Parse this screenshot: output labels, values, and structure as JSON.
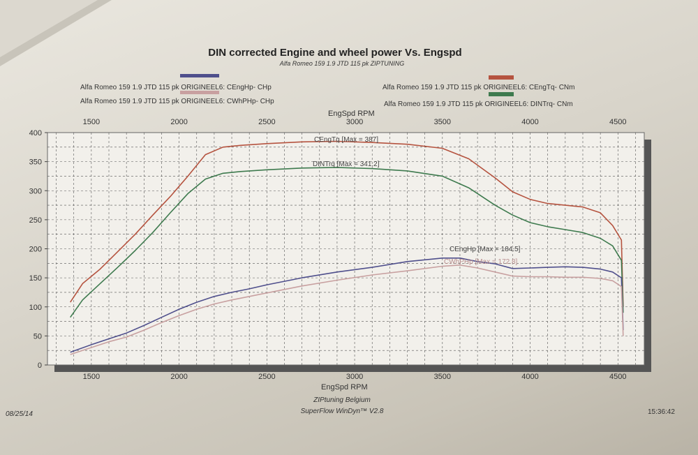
{
  "colors": {
    "ceng_tq": "#b5533f",
    "din_tq": "#3e7a4e",
    "ceng_hp": "#4f4f8c",
    "cwh_php": "#c8a0a0"
  },
  "chart": {
    "title": "DIN corrected Engine and wheel power Vs. Engspd",
    "subtitle": "Alfa Romeo 159 1.9 JTD 115 pk ZIPTUNING",
    "top_axis_label": "EngSpd RPM",
    "bottom_axis_label": "EngSpd RPM"
  },
  "legend": [
    {
      "label": "Alfa Romeo 159 1.9 JTD 115 pk ORIGINEEL6: CEngHp-  CHp",
      "color": "#4f4f8c"
    },
    {
      "label": "Alfa Romeo 159 1.9 JTD 115 pk ORIGINEEL6: CWhPHp-  CHp",
      "color": "#c8a0a0"
    },
    {
      "label": "Alfa Romeo 159 1.9 JTD 115 pk ORIGINEEL6: CEngTq-  CNm",
      "color": "#b5533f"
    },
    {
      "label": "Alfa Romeo 159 1.9 JTD 115 pk ORIGINEEL6: DINTrq-  CNm",
      "color": "#3e7a4e"
    }
  ],
  "annotations": {
    "ceng_tq_max": "CEngTq [Max = 387]",
    "din_trq_max": "DINTrq [Max = 341.2]",
    "ceng_hp_max": "CEngHp [Max = 184.5]",
    "cwh_php_max": "CWhPHp [Max = 172.8]"
  },
  "footer": {
    "date": "08/25/14",
    "company": "ZIPtuning Belgium",
    "software": "SuperFlow WinDyn™ V2.8",
    "time": "15:36:42"
  },
  "chart_data": {
    "type": "line",
    "title": "DIN corrected Engine and wheel power Vs. Engspd",
    "subtitle": "Alfa Romeo 159 1.9 JTD 115 pk ZIPTUNING",
    "xlabel": "EngSpd RPM",
    "ylabel": "",
    "xlim": [
      1250,
      4650
    ],
    "ylim": [
      0,
      400
    ],
    "x_ticks": [
      1500,
      2000,
      2500,
      3000,
      3500,
      4000,
      4500
    ],
    "y_ticks": [
      0,
      50,
      100,
      150,
      200,
      250,
      300,
      350,
      400
    ],
    "grid": true,
    "legend_position": "top",
    "series": [
      {
        "name": "Alfa Romeo 159 1.9 JTD 115 pk ORIGINEEL6: CEngTq-  CNm",
        "color": "#b5533f",
        "x": [
          1380,
          1450,
          1550,
          1650,
          1750,
          1850,
          1950,
          2050,
          2150,
          2250,
          2350,
          2500,
          2700,
          2900,
          3100,
          3300,
          3500,
          3650,
          3800,
          3900,
          4000,
          4100,
          4200,
          4300,
          4400,
          4470,
          4520,
          4530
        ],
        "y": [
          108,
          140,
          165,
          195,
          225,
          258,
          290,
          325,
          362,
          375,
          378,
          381,
          384,
          385,
          383,
          380,
          373,
          355,
          322,
          298,
          285,
          278,
          275,
          272,
          262,
          240,
          215,
          100
        ]
      },
      {
        "name": "Alfa Romeo 159 1.9 JTD 115 pk ORIGINEEL6: DINTrq-  CNm",
        "color": "#3e7a4e",
        "x": [
          1380,
          1450,
          1550,
          1650,
          1750,
          1850,
          1950,
          2050,
          2150,
          2250,
          2350,
          2500,
          2700,
          2900,
          3100,
          3300,
          3500,
          3650,
          3800,
          3900,
          4000,
          4100,
          4200,
          4300,
          4400,
          4470,
          4520,
          4530
        ],
        "y": [
          82,
          112,
          140,
          168,
          197,
          228,
          262,
          295,
          320,
          330,
          333,
          336,
          339,
          340,
          338,
          334,
          325,
          305,
          275,
          258,
          245,
          238,
          233,
          228,
          218,
          205,
          180,
          90
        ]
      },
      {
        "name": "Alfa Romeo 159 1.9 JTD 115 pk ORIGINEEL6: CEngHp-  CHp",
        "color": "#4f4f8c",
        "x": [
          1380,
          1500,
          1600,
          1700,
          1800,
          1900,
          2000,
          2100,
          2200,
          2300,
          2400,
          2500,
          2700,
          2900,
          3100,
          3300,
          3500,
          3600,
          3700,
          3800,
          3900,
          4000,
          4100,
          4200,
          4300,
          4400,
          4470,
          4520,
          4530
        ],
        "y": [
          22,
          35,
          45,
          55,
          68,
          82,
          96,
          108,
          118,
          125,
          131,
          138,
          150,
          160,
          168,
          178,
          184,
          184,
          178,
          174,
          166,
          167,
          168,
          169,
          168,
          165,
          160,
          150,
          60
        ]
      },
      {
        "name": "Alfa Romeo 159 1.9 JTD 115 pk ORIGINEEL6: CWhPHp-  CHp",
        "color": "#c8a0a0",
        "x": [
          1380,
          1500,
          1600,
          1700,
          1800,
          1900,
          2000,
          2100,
          2200,
          2300,
          2400,
          2500,
          2700,
          2900,
          3100,
          3300,
          3500,
          3600,
          3700,
          3800,
          3900,
          4000,
          4100,
          4200,
          4300,
          4400,
          4470,
          4520,
          4530
        ],
        "y": [
          18,
          30,
          40,
          48,
          60,
          73,
          85,
          96,
          105,
          112,
          118,
          124,
          136,
          146,
          155,
          162,
          170,
          172,
          167,
          160,
          153,
          152,
          152,
          151,
          151,
          149,
          145,
          135,
          50
        ]
      }
    ],
    "annotations": [
      {
        "text": "CEngTq [Max = 387]",
        "series": "CEngTq"
      },
      {
        "text": "DINTrq [Max = 341.2]",
        "series": "DINTrq"
      },
      {
        "text": "CEngHp [Max = 184.5]",
        "series": "CEngHp"
      },
      {
        "text": "CWhPHp [Max = 172.8]",
        "series": "CWhPHp"
      }
    ]
  }
}
